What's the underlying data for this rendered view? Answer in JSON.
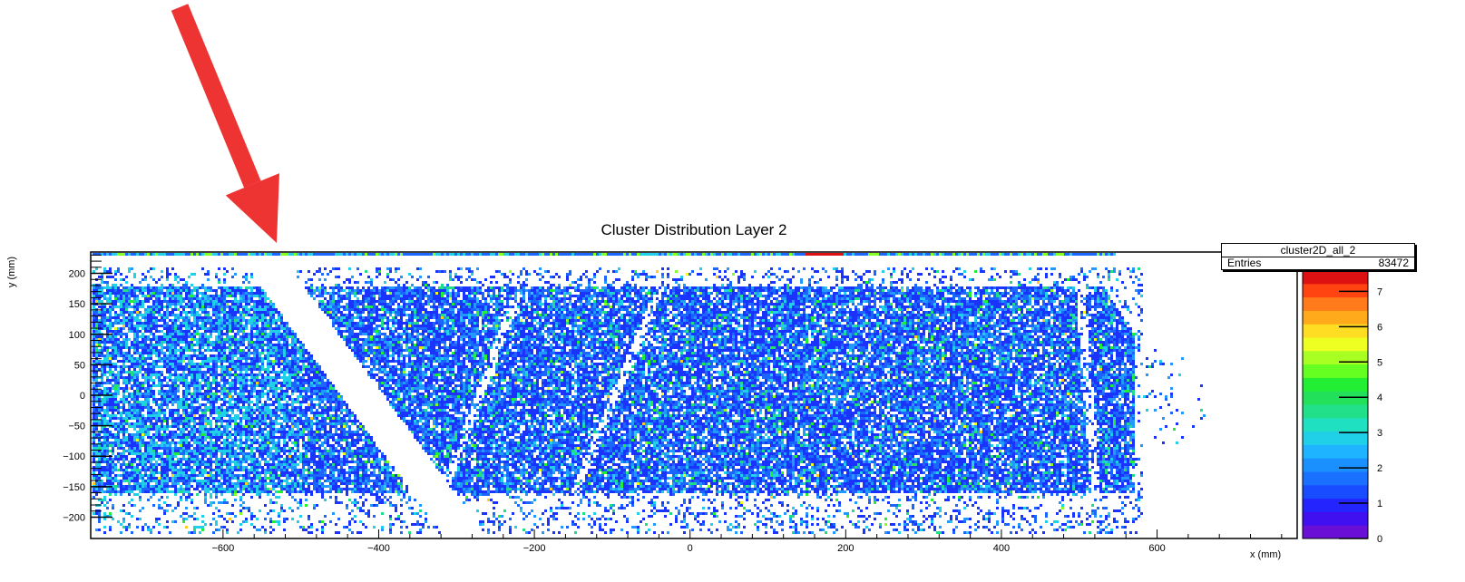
{
  "chart_data": {
    "type": "heatmap",
    "title": "Cluster Distribution Layer 2",
    "xlabel": "x (mm)",
    "ylabel": "y (mm)",
    "xlim": [
      -770,
      780
    ],
    "ylim": [
      -235,
      235
    ],
    "x_ticks": [
      -600,
      -400,
      -200,
      0,
      200,
      400,
      600
    ],
    "y_ticks": [
      -200,
      -150,
      -100,
      -50,
      0,
      50,
      100,
      150,
      200
    ],
    "z_ticks": [
      0,
      1,
      2,
      3,
      4,
      5,
      6,
      7
    ],
    "zlim": [
      0,
      7.6
    ],
    "stats": {
      "name": "cluster2D_all_2",
      "entries_label": "Entries",
      "entries_value": "83472"
    },
    "palette": [
      "#6a0fd6",
      "#3a1af2",
      "#1a33ff",
      "#1a66ff",
      "#2299ff",
      "#1fd0e8",
      "#22dd88",
      "#22ee33",
      "#88ff22",
      "#eeff22",
      "#ffcc22",
      "#ff8a1a",
      "#ff4411",
      "#dd1111"
    ],
    "regions": {
      "main_band_y": [
        -160,
        180
      ],
      "sparse_band_y": [
        -225,
        210
      ],
      "main_band_x": [
        -770,
        570
      ],
      "gap_line": {
        "x_at_top": -525,
        "x_at_bottom": -330,
        "width_mm": 55
      },
      "faint_gaps": [
        {
          "x_at_top": -220,
          "x_at_bottom": -320
        },
        {
          "x_at_top": -40,
          "x_at_bottom": -150
        },
        {
          "x_at_top": 500,
          "x_at_bottom": 520
        }
      ]
    },
    "arrow": {
      "color": "#ee3333",
      "from": [
        -710,
        600
      ],
      "to": [
        -545,
        235
      ]
    }
  }
}
